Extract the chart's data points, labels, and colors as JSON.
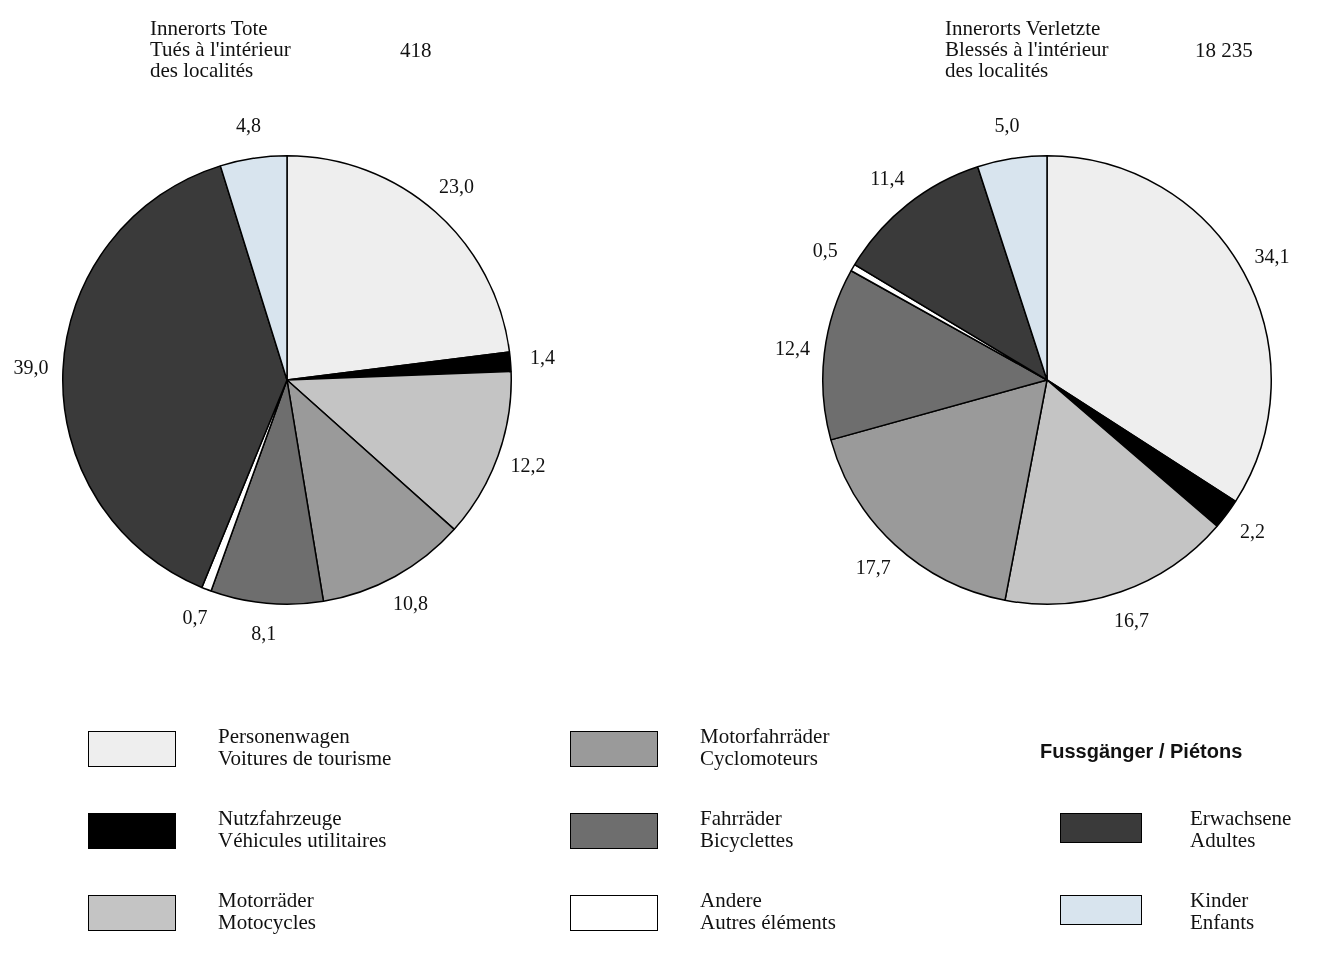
{
  "chart_data": [
    {
      "type": "pie",
      "title": "Innerorts Tote\nTués à l'intérieur\ndes localités",
      "subtitle": "418",
      "categories": [
        "Personenwagen\nVoitures de tourisme",
        "Nutzfahrzeuge\nVéhicules utilitaires",
        "Motorräder\nMotocycles",
        "Motorfahrräder\nCyclomoteurs",
        "Fahrräder\nBicyclettes",
        "Andere\nAutres éléments",
        "Erwachsene\nAdultes",
        "Kinder\nEnfants"
      ],
      "values": [
        23.0,
        1.4,
        12.2,
        10.8,
        8.1,
        0.7,
        39.0,
        4.8
      ],
      "value_labels": [
        "23,0",
        "1,4",
        "12,2",
        "10,8",
        "8,1",
        "0,7",
        "39,0",
        "4,8"
      ],
      "colors": [
        "#eeeeee",
        "#000000",
        "#c4c4c4",
        "#9a9a9a",
        "#6e6e6e",
        "#ffffff",
        "#3a3a3a",
        "#d8e4ee"
      ],
      "legend": "bottom",
      "legend_title": "Fussgänger / Piétons"
    },
    {
      "type": "pie",
      "title": "Innerorts Verletzte\nBlessés à l'intérieur\ndes localités",
      "subtitle": "18 235",
      "values": [
        34.1,
        2.2,
        16.7,
        17.7,
        12.4,
        0.5,
        11.4,
        5.0
      ],
      "value_labels": [
        "34,1",
        "2,2",
        "16,7",
        "17,7",
        "12,4",
        "0,5",
        "11,4",
        "5,0"
      ],
      "colors": [
        "#eeeeee",
        "#000000",
        "#c4c4c4",
        "#9a9a9a",
        "#6e6e6e",
        "#ffffff",
        "#3a3a3a",
        "#d8e4ee"
      ]
    }
  ]
}
